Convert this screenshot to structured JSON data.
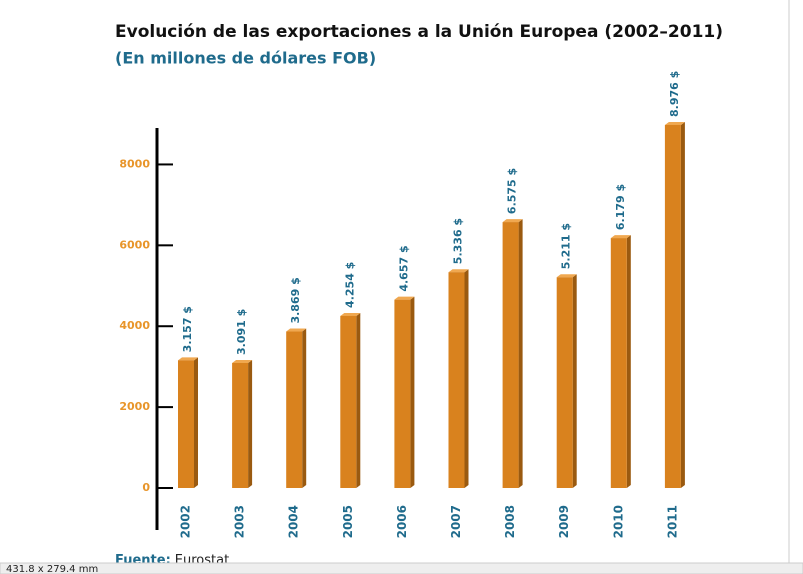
{
  "chart_data": {
    "type": "bar",
    "title": "Evolución de las exportaciones a la Unión Europea (2002–2011)",
    "subtitle": "(En millones de dólares FOB)",
    "categories": [
      "2002",
      "2003",
      "2004",
      "2005",
      "2006",
      "2007",
      "2008",
      "2009",
      "2010",
      "2011"
    ],
    "values": [
      3157,
      3091,
      3869,
      4254,
      4657,
      5336,
      6575,
      5211,
      6179,
      8976
    ],
    "value_labels": [
      "3.157 $",
      "3.091 $",
      "3.869 $",
      "4.254 $",
      "4.657 $",
      "5.336 $",
      "6.575 $",
      "5.211 $",
      "6.179 $",
      "8.976 $"
    ],
    "color": "#d9821e",
    "ylim": [
      0,
      9000
    ],
    "yticks": [
      0,
      2000,
      4000,
      6000,
      8000
    ],
    "source_label": "Fuente:",
    "source": "Eurostat"
  },
  "statusbar": {
    "size": "431.8 x 279.4 mm"
  }
}
